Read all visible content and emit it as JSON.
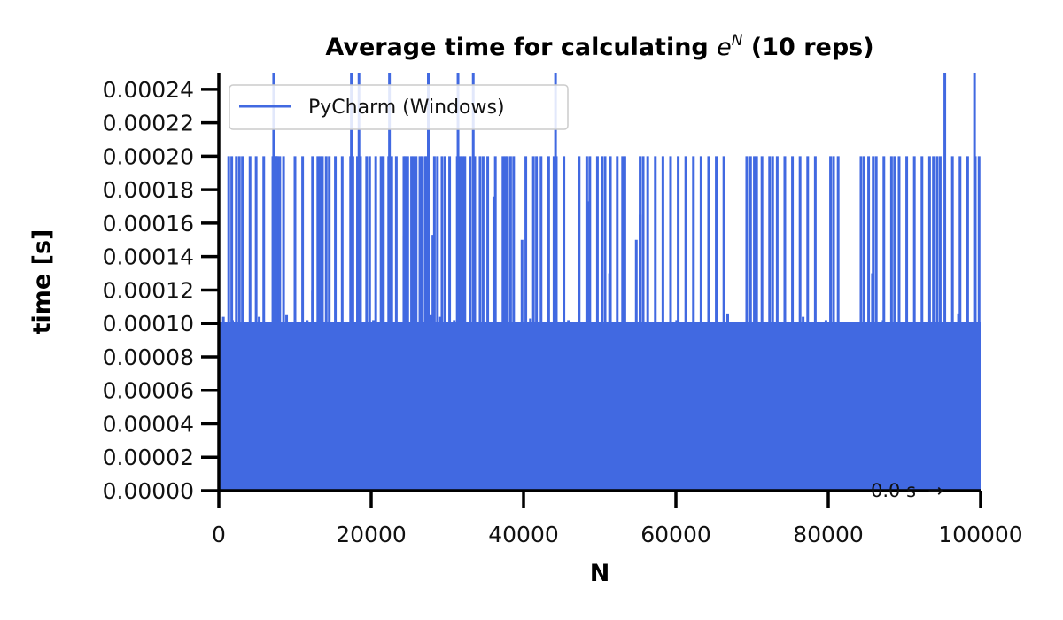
{
  "chart_data": {
    "type": "line",
    "title_prefix": "Average time for calculating ",
    "title_math_base": "e",
    "title_math_sup": "N",
    "title_suffix": " (10 reps)",
    "xlabel": "N",
    "ylabel": "time [s]",
    "xlim": [
      0,
      100000
    ],
    "ylim": [
      0,
      0.00025
    ],
    "x_ticks": [
      0,
      20000,
      40000,
      60000,
      80000,
      100000
    ],
    "x_tick_labels": [
      "0",
      "20000",
      "40000",
      "60000",
      "80000",
      "100000"
    ],
    "y_ticks": [
      0,
      2e-05,
      4e-05,
      6e-05,
      8e-05,
      0.0001,
      0.00012,
      0.00014,
      0.00016,
      0.00018,
      0.0002,
      0.00022,
      0.00024
    ],
    "y_tick_labels": [
      "0.00000",
      "0.00002",
      "0.00004",
      "0.00006",
      "0.00008",
      "0.00010",
      "0.00012",
      "0.00014",
      "0.00016",
      "0.00018",
      "0.00020",
      "0.00022",
      "0.00024"
    ],
    "grid": false,
    "legend_position": "top-left",
    "annotation": "0.0 s  →",
    "series": [
      {
        "name": "PyCharm (Windows)",
        "color": "#4169e1",
        "base_range": [
          0,
          0.000101
        ],
        "spikes": [
          [
            1300,
            0.0002
          ],
          [
            1700,
            0.0002
          ],
          [
            2300,
            0.0002
          ],
          [
            2700,
            0.0002
          ],
          [
            3100,
            0.0002
          ],
          [
            4100,
            0.0002
          ],
          [
            4900,
            0.0002
          ],
          [
            5900,
            0.0002
          ],
          [
            7100,
            0.0002
          ],
          [
            7300,
            0.0002
          ],
          [
            7500,
            0.0002
          ],
          [
            7600,
            0.0002
          ],
          [
            7700,
            0.0002
          ],
          [
            8000,
            0.0002
          ],
          [
            8500,
            0.0002
          ],
          [
            10000,
            0.0002
          ],
          [
            11000,
            0.0002
          ],
          [
            12300,
            0.0002
          ],
          [
            13000,
            0.0002
          ],
          [
            13300,
            0.0002
          ],
          [
            13600,
            0.0002
          ],
          [
            14100,
            0.0002
          ],
          [
            14500,
            0.0002
          ],
          [
            15300,
            0.0002
          ],
          [
            16200,
            0.0002
          ],
          [
            17300,
            0.0002
          ],
          [
            17600,
            0.0002
          ],
          [
            18200,
            0.0002
          ],
          [
            18600,
            0.0002
          ],
          [
            19400,
            0.0002
          ],
          [
            19800,
            0.0002
          ],
          [
            20600,
            0.0002
          ],
          [
            21300,
            0.0002
          ],
          [
            21600,
            0.0002
          ],
          [
            22300,
            0.0002
          ],
          [
            22700,
            0.0002
          ],
          [
            23300,
            0.0002
          ],
          [
            24300,
            0.0002
          ],
          [
            24500,
            0.0002
          ],
          [
            24800,
            0.0002
          ],
          [
            25300,
            0.0002
          ],
          [
            25600,
            0.0002
          ],
          [
            25900,
            0.0002
          ],
          [
            26400,
            0.0002
          ],
          [
            26700,
            0.0002
          ],
          [
            27100,
            0.0002
          ],
          [
            27300,
            0.0002
          ],
          [
            28300,
            0.0002
          ],
          [
            28700,
            0.0002
          ],
          [
            29300,
            0.0002
          ],
          [
            29700,
            0.0002
          ],
          [
            30300,
            0.0002
          ],
          [
            31300,
            0.0002
          ],
          [
            31700,
            0.0002
          ],
          [
            32000,
            0.0002
          ],
          [
            32300,
            0.0002
          ],
          [
            33000,
            0.0002
          ],
          [
            33600,
            0.0002
          ],
          [
            34300,
            0.0002
          ],
          [
            34700,
            0.0002
          ],
          [
            35300,
            0.0002
          ],
          [
            36300,
            0.0002
          ],
          [
            37300,
            0.0002
          ],
          [
            37600,
            0.0002
          ],
          [
            37900,
            0.0002
          ],
          [
            38300,
            0.0002
          ],
          [
            38700,
            0.0002
          ],
          [
            40300,
            0.0002
          ],
          [
            41300,
            0.0002
          ],
          [
            41700,
            0.0002
          ],
          [
            42300,
            0.0002
          ],
          [
            43300,
            0.0002
          ],
          [
            44000,
            0.0002
          ],
          [
            44300,
            0.0002
          ],
          [
            45300,
            0.0002
          ],
          [
            47300,
            0.0002
          ],
          [
            48300,
            0.0002
          ],
          [
            48700,
            0.0002
          ],
          [
            49700,
            0.0002
          ],
          [
            50300,
            0.0002
          ],
          [
            50700,
            0.0002
          ],
          [
            51400,
            0.0002
          ],
          [
            52300,
            0.0002
          ],
          [
            53000,
            0.0002
          ],
          [
            53300,
            0.0002
          ],
          [
            55300,
            0.0002
          ],
          [
            55700,
            0.0002
          ],
          [
            56300,
            0.0002
          ],
          [
            57300,
            0.0002
          ],
          [
            58300,
            0.0002
          ],
          [
            59300,
            0.0002
          ],
          [
            60300,
            0.0002
          ],
          [
            61300,
            0.0002
          ],
          [
            62300,
            0.0002
          ],
          [
            63300,
            0.0002
          ],
          [
            64300,
            0.0002
          ],
          [
            65300,
            0.0002
          ],
          [
            66300,
            0.0002
          ],
          [
            69300,
            0.0002
          ],
          [
            69800,
            0.0002
          ],
          [
            70300,
            0.0002
          ],
          [
            70600,
            0.0002
          ],
          [
            71300,
            0.0002
          ],
          [
            72300,
            0.0002
          ],
          [
            72700,
            0.0002
          ],
          [
            73300,
            0.0002
          ],
          [
            74300,
            0.0002
          ],
          [
            75300,
            0.0002
          ],
          [
            76300,
            0.0002
          ],
          [
            77300,
            0.0002
          ],
          [
            78300,
            0.0002
          ],
          [
            80300,
            0.0002
          ],
          [
            80700,
            0.0002
          ],
          [
            81300,
            0.0002
          ],
          [
            84300,
            0.0002
          ],
          [
            84700,
            0.0002
          ],
          [
            85300,
            0.0002
          ],
          [
            85900,
            0.0002
          ],
          [
            86300,
            0.0002
          ],
          [
            87300,
            0.0002
          ],
          [
            88300,
            0.0002
          ],
          [
            88700,
            0.0002
          ],
          [
            89300,
            0.0002
          ],
          [
            90300,
            0.0002
          ],
          [
            91300,
            0.0002
          ],
          [
            92300,
            0.0002
          ],
          [
            93300,
            0.0002
          ],
          [
            93800,
            0.0002
          ],
          [
            94300,
            0.0002
          ],
          [
            94700,
            0.0002
          ],
          [
            96300,
            0.0002
          ],
          [
            97300,
            0.0002
          ],
          [
            98300,
            0.0002
          ],
          [
            99300,
            0.0002
          ],
          [
            99800,
            0.0002
          ],
          [
            7200,
            0.00025
          ],
          [
            17400,
            0.00025
          ],
          [
            18400,
            0.00025
          ],
          [
            22400,
            0.00025
          ],
          [
            27500,
            0.00025
          ],
          [
            31400,
            0.00025
          ],
          [
            33400,
            0.00025
          ],
          [
            44200,
            0.00025
          ],
          [
            95300,
            0.00025
          ],
          [
            99200,
            0.00025
          ],
          [
            7600,
            0.000196
          ],
          [
            12300,
            0.00012
          ],
          [
            24300,
            0.000152
          ],
          [
            28100,
            0.000153
          ],
          [
            36100,
            0.000176
          ],
          [
            39800,
            0.00015
          ],
          [
            48600,
            0.000173
          ],
          [
            51300,
            0.00013
          ],
          [
            54800,
            0.00015
          ],
          [
            55300,
            0.000165
          ],
          [
            66800,
            0.000106
          ],
          [
            85800,
            0.00013
          ]
        ],
        "bumps": [
          [
            600,
            0.000104
          ],
          [
            1800,
            0.000102
          ],
          [
            5300,
            0.000104
          ],
          [
            8900,
            0.000105
          ],
          [
            11600,
            0.000102
          ],
          [
            16800,
            0.000101
          ],
          [
            20300,
            0.000102
          ],
          [
            27800,
            0.000105
          ],
          [
            29100,
            0.000104
          ],
          [
            30900,
            0.000102
          ],
          [
            40900,
            0.000103
          ],
          [
            45900,
            0.000102
          ],
          [
            60100,
            0.000102
          ],
          [
            66800,
            0.000105
          ],
          [
            76700,
            0.000104
          ],
          [
            79700,
            0.000102
          ],
          [
            87200,
            0.000102
          ],
          [
            97100,
            0.000106
          ]
        ]
      }
    ]
  }
}
